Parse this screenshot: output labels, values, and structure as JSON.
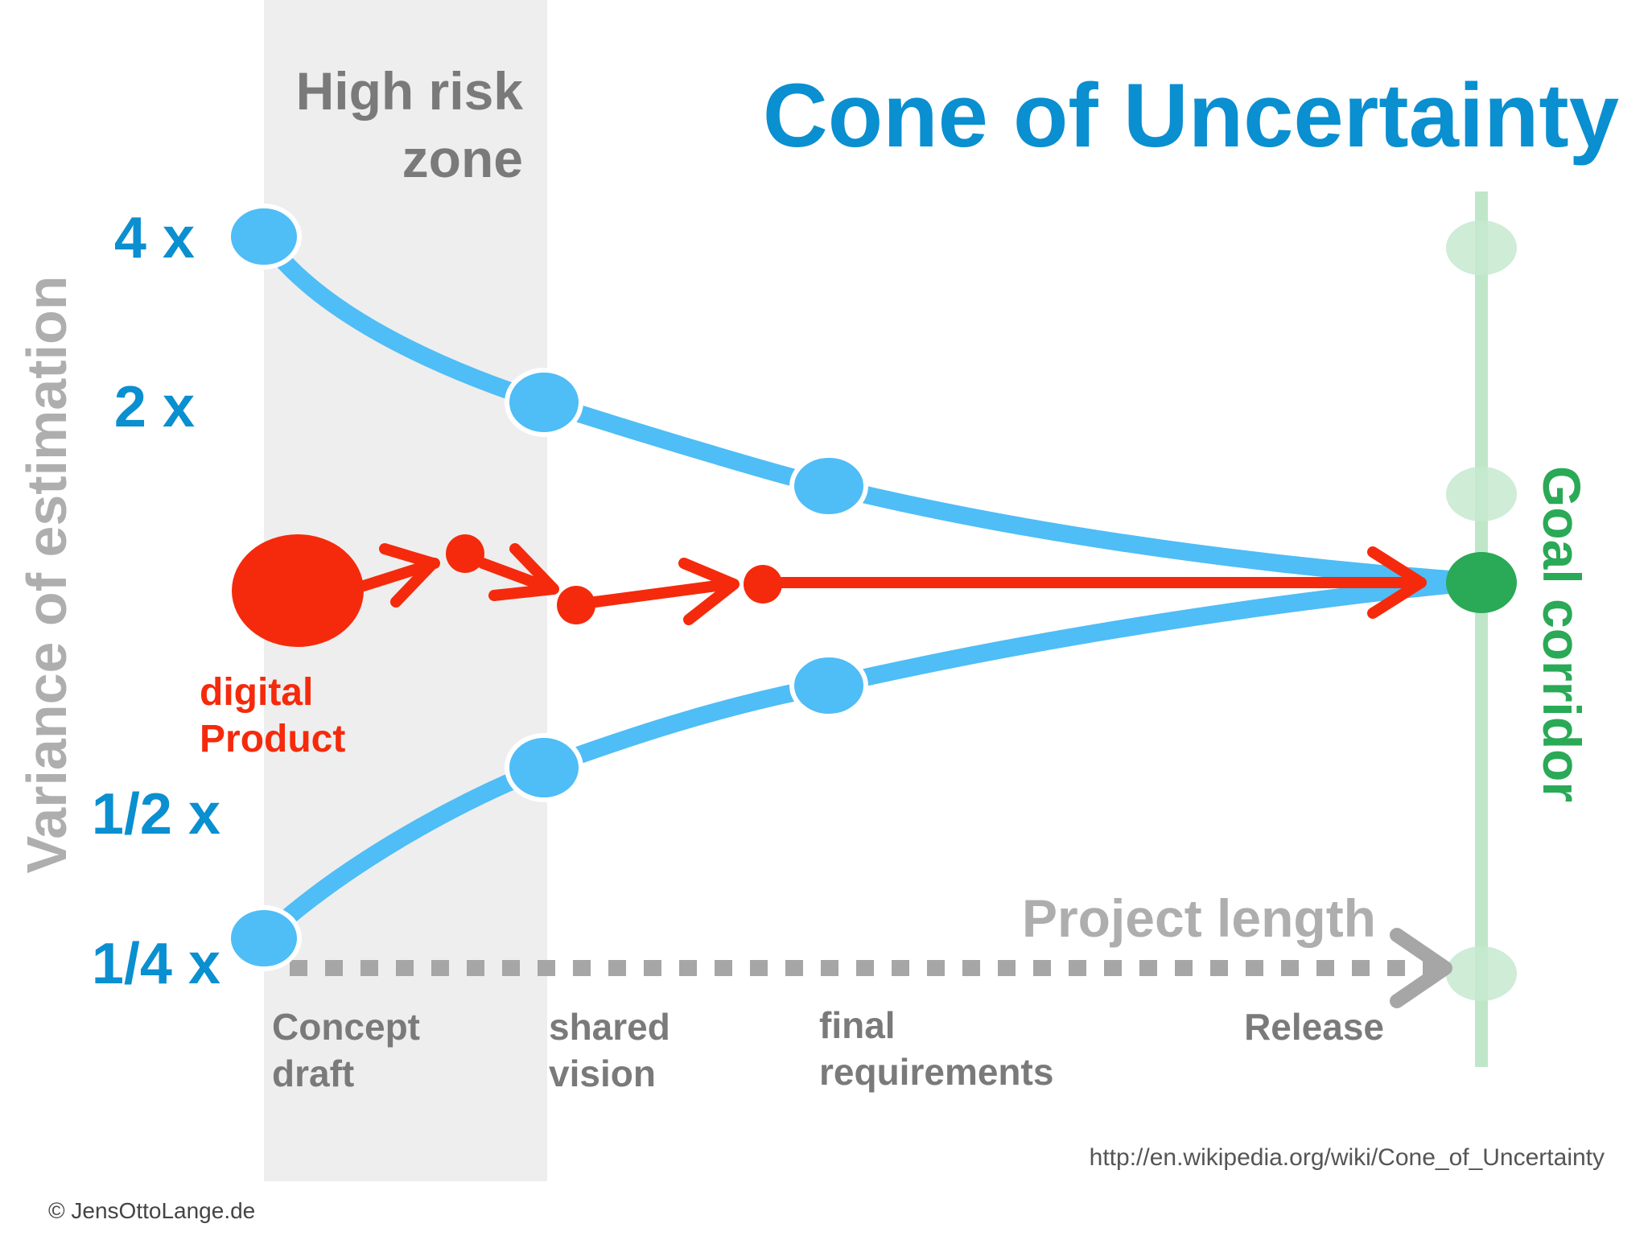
{
  "title": "Cone of Uncertainty",
  "zone": {
    "line1": "High risk",
    "line2": "zone"
  },
  "y_axis": {
    "label": "Variance of estimation",
    "levels": [
      "4 x",
      "2 x",
      "1/2 x",
      "1/4 x"
    ]
  },
  "product": {
    "line1": "digital",
    "line2": "Product"
  },
  "goal": {
    "label": "Goal corridor"
  },
  "x_axis": {
    "label": "Project length"
  },
  "milestones": [
    {
      "line1": "Concept",
      "line2": "draft"
    },
    {
      "line1": "shared",
      "line2": "vision"
    },
    {
      "line1": "final",
      "line2": "requirements"
    },
    {
      "line1": "Release",
      "line2": ""
    }
  ],
  "source_url": "http://en.wikipedia.org/wiki/Cone_of_Uncertainty",
  "copyright": "© JensOttoLange.de",
  "colors": {
    "title_blue": "#0a8fd0",
    "cone_blue": "#4fbdf6",
    "product_red": "#f52a0c",
    "goal_green": "#2aa956",
    "goal_green_light": "#bfe6c8",
    "gray_text": "#7a7a7a",
    "light_gray": "#aeaeae",
    "zone_bg": "#eeeeee"
  }
}
